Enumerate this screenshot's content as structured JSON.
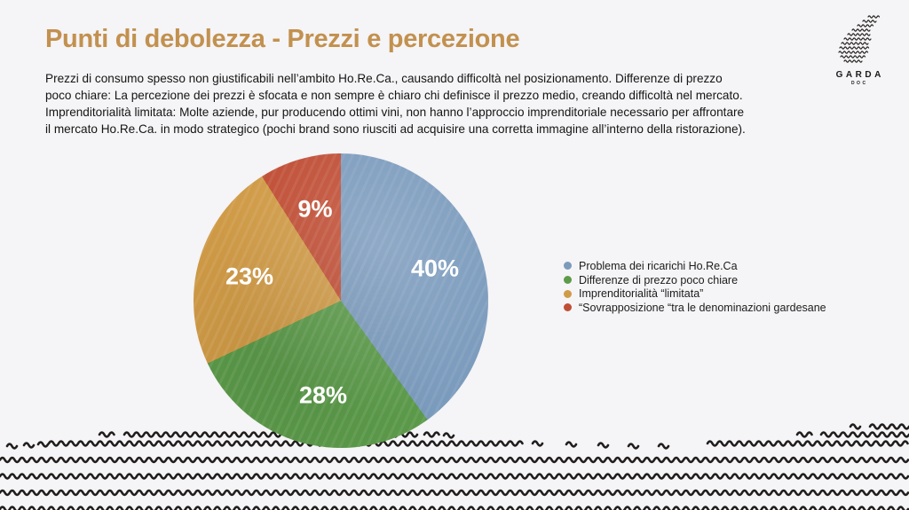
{
  "slide": {
    "title": "Punti di debolezza - Prezzi e percezione",
    "paragraph_lines": [
      "Prezzi di consumo spesso non giustificabili nell’ambito Ho.Re.Ca., causando difficoltà nel posizionamento. Differenze di prezzo",
      "poco chiare: La percezione dei prezzi è sfocata e non sempre è chiaro chi definisce il prezzo medio, creando difficoltà nel mercato.",
      "Imprenditorialità limitata: Molte aziende, pur producendo ottimi vini, non hanno l’approccio imprenditoriale necessario per affrontare",
      "il mercato Ho.Re.Ca. in modo strategico (pochi brand sono riusciti ad acquisire una corretta immagine all’interno della ristorazione)."
    ]
  },
  "logo": {
    "name": "GARDA",
    "sub": "DOC"
  },
  "chart_data": {
    "type": "pie",
    "title": "",
    "start_angle_deg": 0,
    "direction": "clockwise",
    "legend_position": "right",
    "slices": [
      {
        "label": "Problema dei ricarichi Ho.Re.Ca",
        "value": 40,
        "pct_label": "40%",
        "color": "#7B9BBD"
      },
      {
        "label": "Differenze di prezzo poco chiare",
        "value": 28,
        "pct_label": "28%",
        "color": "#5C9B4A"
      },
      {
        "label": "Imprenditorialità “limitata”",
        "value": 23,
        "pct_label": "23%",
        "color": "#D09B47"
      },
      {
        "label": "“Sovrapposizione “tra le denominazioni gardesane",
        "value": 9,
        "pct_label": "9%",
        "color": "#C04E35"
      }
    ]
  }
}
